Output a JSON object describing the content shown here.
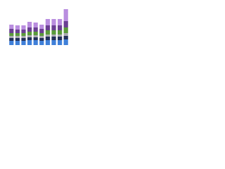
{
  "chart_data": {
    "type": "stacked-bar",
    "categories": [
      null,
      null,
      null,
      null,
      null,
      null,
      null,
      null,
      null,
      null
    ],
    "series": [
      {
        "color": "#3f7fd8",
        "values": [
          6,
          6,
          6,
          7,
          7,
          6,
          7,
          7,
          7,
          8
        ]
      },
      {
        "color": "#23305a",
        "values": [
          4,
          4,
          4,
          4,
          4,
          4,
          5,
          5,
          5,
          5
        ]
      },
      {
        "color": "#a9aab0",
        "values": [
          3,
          3,
          3,
          3,
          3,
          3,
          3,
          3,
          3,
          4
        ]
      },
      {
        "color": "#5a9a3a",
        "values": [
          4,
          4,
          4,
          5,
          5,
          4,
          6,
          6,
          6,
          8
        ]
      },
      {
        "color": "#6a3f92",
        "values": [
          6,
          5,
          5,
          6,
          6,
          6,
          7,
          7,
          7,
          9
        ]
      },
      {
        "color": "#b98ddf",
        "values": [
          6,
          6,
          6,
          8,
          7,
          6,
          9,
          9,
          9,
          17
        ]
      }
    ],
    "ylim": [
      0,
      60
    ],
    "grid": true
  }
}
